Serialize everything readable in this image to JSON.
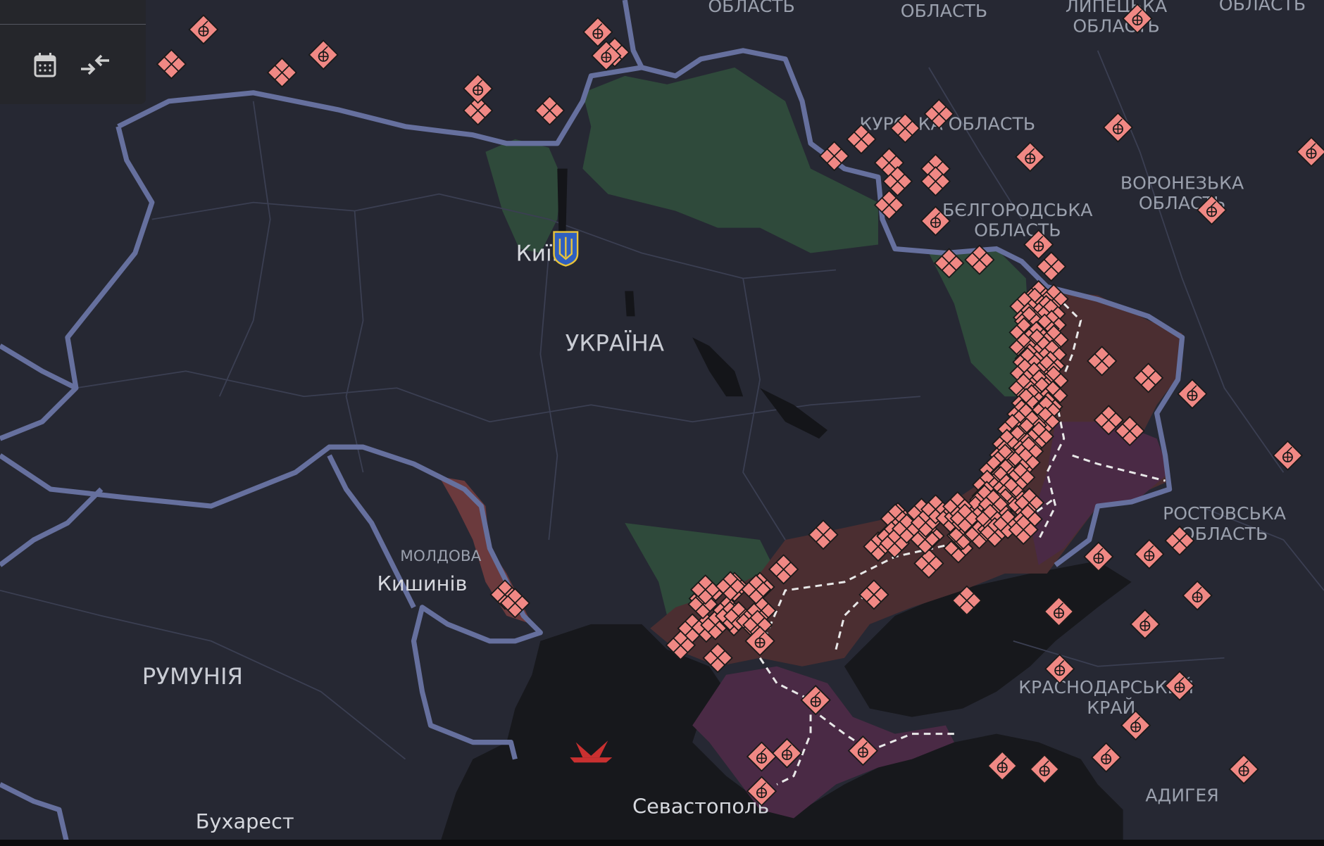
{
  "toolbar": {
    "calendar_icon": "calendar-icon",
    "collapse_icon": "collapse-arrows-icon"
  },
  "map": {
    "labels": {
      "oblast_top_1": "ОБЛАСТЬ",
      "oblast_top_2": "ОБЛАСТЬ",
      "lipetsk_1": "ЛИПЕЦЬКА",
      "lipetsk_2": "ОБЛАСТЬ",
      "oblast_top_3": "ОБЛАСТЬ",
      "kursk": "КУРСЬКА ОБЛАСТЬ",
      "voronezh_1": "ВОРОНЕЗЬКА",
      "voronezh_2": "ОБЛАСТЬ",
      "belgorod_1": "БЄЛГОРОДСЬКА",
      "belgorod_2": "ОБЛАСТЬ",
      "kyiv": "Київ",
      "ukraine": "УКРАЇНА",
      "moldova": "МОЛДОВА",
      "chisinau": "Кишинів",
      "romania": "РУМУНІЯ",
      "rostov_1": "РОСТОВСЬКА",
      "rostov_2": "ОБЛАСТЬ",
      "krasnodar_1": "КРАСНОДАРСЬКИЙ",
      "krasnodar_2": "КРАЙ",
      "adygea": "АДИГЕЯ",
      "sevastopol": "Севастополь",
      "bucharest": "Бухарест"
    },
    "colors": {
      "land": "#262833",
      "sea": "#17181c",
      "border": "#66709e",
      "occupied": "#4b2e31",
      "crimea": "#4a2a45",
      "liberated": "#2f4a3b",
      "transnistria": "#6b3a3d",
      "marker": "#f08884"
    },
    "marker_types": [
      "artillery",
      "infantry"
    ]
  }
}
